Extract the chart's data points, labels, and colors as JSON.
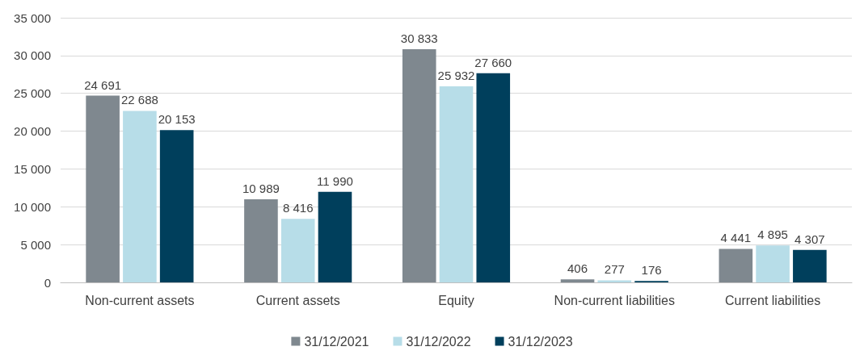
{
  "chart_data": {
    "type": "bar",
    "categories": [
      "Non-current assets",
      "Current assets",
      "Equity",
      "Non-current liabilities",
      "Current liabilities"
    ],
    "series": [
      {
        "name": "31/12/2021",
        "color": "#7f888f",
        "values": [
          24691,
          10989,
          30833,
          406,
          4441
        ],
        "value_labels": [
          "24 691",
          "10 989",
          "30 833",
          "406",
          "4 441"
        ]
      },
      {
        "name": "31/12/2022",
        "color": "#b7dde8",
        "values": [
          22688,
          8416,
          25932,
          277,
          4895
        ],
        "value_labels": [
          "22 688",
          "8 416",
          "25 932",
          "277",
          "4 895"
        ]
      },
      {
        "name": "31/12/2023",
        "color": "#003f5c",
        "values": [
          20153,
          11990,
          27660,
          176,
          4307
        ],
        "value_labels": [
          "20 153",
          "11 990",
          "27 660",
          "176",
          "4 307"
        ]
      }
    ],
    "ylim": [
      0,
      35000
    ],
    "yticks": [
      {
        "value": 0,
        "label": "0"
      },
      {
        "value": 5000,
        "label": "5 000"
      },
      {
        "value": 10000,
        "label": "10 000"
      },
      {
        "value": 15000,
        "label": "15 000"
      },
      {
        "value": 20000,
        "label": "20 000"
      },
      {
        "value": 25000,
        "label": "25 000"
      },
      {
        "value": 30000,
        "label": "30 000"
      },
      {
        "value": 35000,
        "label": "35 000"
      }
    ],
    "grid": "y",
    "legend": "bottom"
  }
}
